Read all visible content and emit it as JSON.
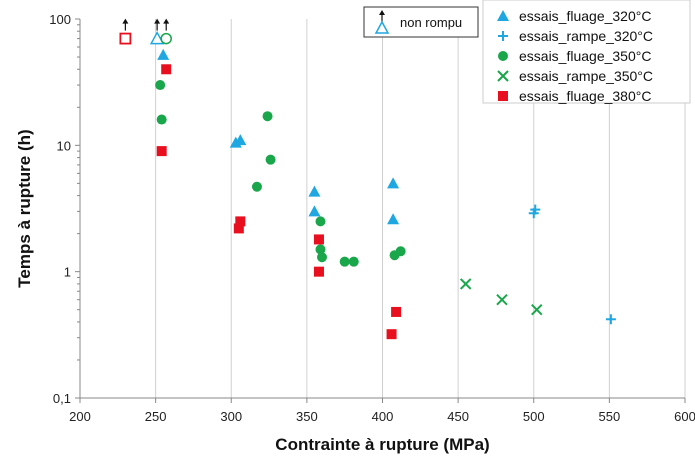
{
  "chart_data": {
    "type": "scatter",
    "title": "",
    "xlabel": "Contrainte à rupture (MPa)",
    "ylabel": "Temps à rupture (h)",
    "xlim": [
      200,
      600
    ],
    "ylim": [
      0.1,
      100
    ],
    "yscale": "log",
    "grid": "vertical",
    "legend_position": "top-right",
    "x_ticks": [
      "200",
      "250",
      "300",
      "350",
      "400",
      "450",
      "500",
      "550",
      "600"
    ],
    "y_ticks": [
      "0,1",
      "1",
      "10",
      "100"
    ],
    "annotation": {
      "label": "non rompu"
    },
    "series": [
      {
        "name": "essais_fluage_320°C",
        "marker": "triangle",
        "color": "#1ea7e0",
        "points": [
          [
            255,
            52
          ],
          [
            303,
            10.5
          ],
          [
            306,
            11
          ],
          [
            355,
            4.3
          ],
          [
            355,
            3.0
          ],
          [
            407,
            5.0
          ],
          [
            407,
            2.6
          ]
        ],
        "unbroken_points": [
          [
            251,
            70
          ]
        ]
      },
      {
        "name": "essais_rampe_320°C",
        "marker": "plus",
        "color": "#1ea7e0",
        "points": [
          [
            500,
            2.9
          ],
          [
            501,
            3.1
          ],
          [
            551,
            0.42
          ]
        ],
        "unbroken_points": []
      },
      {
        "name": "essais_fluage_350°C",
        "marker": "circle",
        "color": "#1aa64b",
        "points": [
          [
            253,
            30
          ],
          [
            254,
            16
          ],
          [
            324,
            17
          ],
          [
            326,
            7.7
          ],
          [
            317,
            4.7
          ],
          [
            359,
            2.5
          ],
          [
            359,
            1.5
          ],
          [
            360,
            1.3
          ],
          [
            375,
            1.2
          ],
          [
            381,
            1.2
          ],
          [
            408,
            1.35
          ],
          [
            412,
            1.45
          ]
        ],
        "unbroken_points": [
          [
            257,
            70
          ]
        ]
      },
      {
        "name": "essais_rampe_350°C",
        "marker": "x",
        "color": "#1aa64b",
        "points": [
          [
            455,
            0.8
          ],
          [
            479,
            0.6
          ],
          [
            502,
            0.5
          ]
        ],
        "unbroken_points": []
      },
      {
        "name": "essais_fluage_380°C",
        "marker": "square",
        "color": "#e8101e",
        "points": [
          [
            257,
            40
          ],
          [
            254,
            9
          ],
          [
            306,
            2.5
          ],
          [
            305,
            2.2
          ],
          [
            358,
            1.8
          ],
          [
            358,
            1.0
          ],
          [
            409,
            0.48
          ],
          [
            406,
            0.32
          ]
        ],
        "unbroken_points": [
          [
            230,
            70
          ]
        ]
      }
    ]
  }
}
